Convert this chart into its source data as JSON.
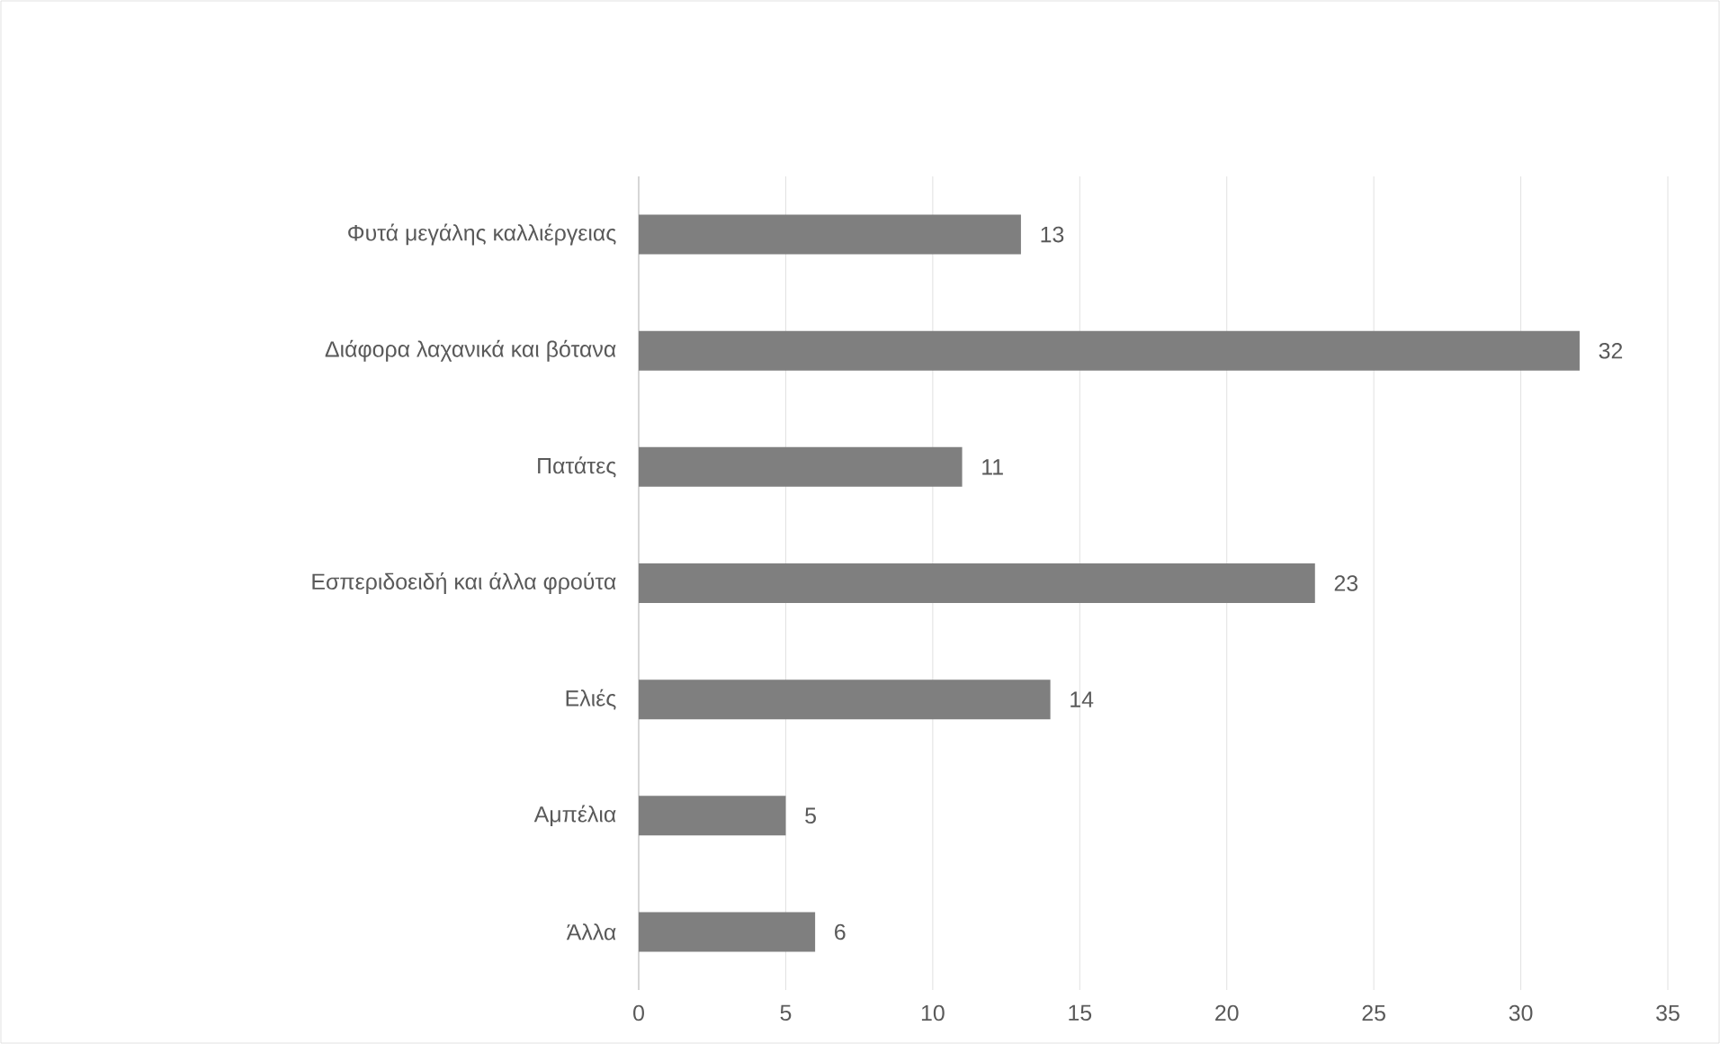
{
  "chart_data": {
    "type": "bar",
    "orientation": "horizontal",
    "categories": [
      "Φυτά μεγάλης καλλιέργειας",
      "Διάφορα λαχανικά και βότανα",
      "Πατάτες",
      "Εσπεριδοειδή και άλλα φρούτα",
      "Ελιές",
      "Αμπέλια",
      "Άλλα"
    ],
    "values": [
      13,
      32,
      11,
      23,
      14,
      5,
      6
    ],
    "color": "#7f7f7f",
    "xlim": [
      0,
      35
    ],
    "xticks": [
      0,
      5,
      10,
      15,
      20,
      25,
      30,
      35
    ],
    "grid": "x",
    "data_labels": true
  }
}
